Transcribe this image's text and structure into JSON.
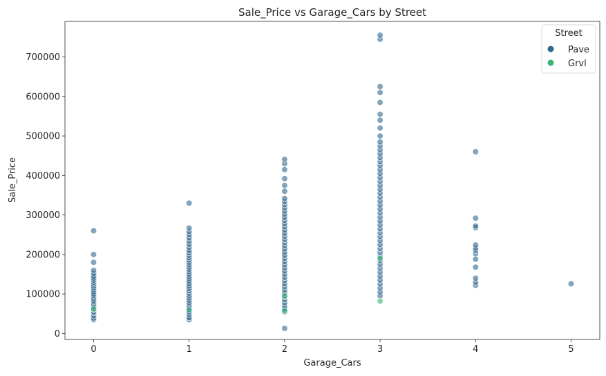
{
  "chart_data": {
    "type": "scatter",
    "title": "Sale_Price vs Garage_Cars by Street",
    "xlabel": "Garage_Cars",
    "ylabel": "Sale_Price",
    "xlim": [
      -0.3,
      5.3
    ],
    "ylim": [
      -15000,
      790000
    ],
    "xticks": [
      0,
      1,
      2,
      3,
      4,
      5
    ],
    "yticks": [
      0,
      100000,
      200000,
      300000,
      400000,
      500000,
      600000,
      700000
    ],
    "grid": false,
    "legend": {
      "title": "Street",
      "placement": "top-right",
      "entries": [
        {
          "name": "Pave",
          "color": "#31688e"
        },
        {
          "name": "Grvl",
          "color": "#35b779"
        }
      ]
    },
    "series": [
      {
        "name": "Pave",
        "color": "#31688e",
        "points": [
          [
            0,
            35000
          ],
          [
            0,
            39000
          ],
          [
            0,
            45000
          ],
          [
            0,
            52000
          ],
          [
            0,
            55000
          ],
          [
            0,
            60000
          ],
          [
            0,
            64000
          ],
          [
            0,
            68000
          ],
          [
            0,
            72000
          ],
          [
            0,
            76000
          ],
          [
            0,
            80000
          ],
          [
            0,
            84000
          ],
          [
            0,
            88000
          ],
          [
            0,
            92000
          ],
          [
            0,
            96000
          ],
          [
            0,
            100000
          ],
          [
            0,
            105000
          ],
          [
            0,
            110000
          ],
          [
            0,
            115000
          ],
          [
            0,
            120000
          ],
          [
            0,
            125000
          ],
          [
            0,
            130000
          ],
          [
            0,
            135000
          ],
          [
            0,
            140000
          ],
          [
            0,
            145000
          ],
          [
            0,
            152000
          ],
          [
            0,
            160000
          ],
          [
            0,
            180000
          ],
          [
            0,
            200000
          ],
          [
            0,
            260000
          ],
          [
            1,
            35000
          ],
          [
            1,
            40000
          ],
          [
            1,
            48000
          ],
          [
            1,
            55000
          ],
          [
            1,
            60000
          ],
          [
            1,
            66000
          ],
          [
            1,
            72000
          ],
          [
            1,
            78000
          ],
          [
            1,
            84000
          ],
          [
            1,
            90000
          ],
          [
            1,
            96000
          ],
          [
            1,
            102000
          ],
          [
            1,
            108000
          ],
          [
            1,
            114000
          ],
          [
            1,
            120000
          ],
          [
            1,
            126000
          ],
          [
            1,
            132000
          ],
          [
            1,
            138000
          ],
          [
            1,
            144000
          ],
          [
            1,
            150000
          ],
          [
            1,
            156000
          ],
          [
            1,
            162000
          ],
          [
            1,
            168000
          ],
          [
            1,
            174000
          ],
          [
            1,
            180000
          ],
          [
            1,
            186000
          ],
          [
            1,
            192000
          ],
          [
            1,
            198000
          ],
          [
            1,
            204000
          ],
          [
            1,
            210000
          ],
          [
            1,
            218000
          ],
          [
            1,
            226000
          ],
          [
            1,
            234000
          ],
          [
            1,
            242000
          ],
          [
            1,
            250000
          ],
          [
            1,
            258000
          ],
          [
            1,
            267000
          ],
          [
            1,
            330000
          ],
          [
            2,
            13000
          ],
          [
            2,
            55000
          ],
          [
            2,
            62000
          ],
          [
            2,
            70000
          ],
          [
            2,
            78000
          ],
          [
            2,
            86000
          ],
          [
            2,
            94000
          ],
          [
            2,
            102000
          ],
          [
            2,
            110000
          ],
          [
            2,
            118000
          ],
          [
            2,
            126000
          ],
          [
            2,
            134000
          ],
          [
            2,
            142000
          ],
          [
            2,
            150000
          ],
          [
            2,
            158000
          ],
          [
            2,
            166000
          ],
          [
            2,
            174000
          ],
          [
            2,
            182000
          ],
          [
            2,
            190000
          ],
          [
            2,
            198000
          ],
          [
            2,
            206000
          ],
          [
            2,
            214000
          ],
          [
            2,
            222000
          ],
          [
            2,
            230000
          ],
          [
            2,
            238000
          ],
          [
            2,
            246000
          ],
          [
            2,
            254000
          ],
          [
            2,
            262000
          ],
          [
            2,
            270000
          ],
          [
            2,
            278000
          ],
          [
            2,
            286000
          ],
          [
            2,
            294000
          ],
          [
            2,
            302000
          ],
          [
            2,
            310000
          ],
          [
            2,
            318000
          ],
          [
            2,
            326000
          ],
          [
            2,
            334000
          ],
          [
            2,
            342000
          ],
          [
            2,
            360000
          ],
          [
            2,
            375000
          ],
          [
            2,
            392000
          ],
          [
            2,
            415000
          ],
          [
            2,
            430000
          ],
          [
            2,
            441000
          ],
          [
            3,
            95000
          ],
          [
            3,
            105000
          ],
          [
            3,
            115000
          ],
          [
            3,
            125000
          ],
          [
            3,
            135000
          ],
          [
            3,
            145000
          ],
          [
            3,
            155000
          ],
          [
            3,
            165000
          ],
          [
            3,
            175000
          ],
          [
            3,
            185000
          ],
          [
            3,
            195000
          ],
          [
            3,
            205000
          ],
          [
            3,
            215000
          ],
          [
            3,
            225000
          ],
          [
            3,
            235000
          ],
          [
            3,
            245000
          ],
          [
            3,
            255000
          ],
          [
            3,
            265000
          ],
          [
            3,
            275000
          ],
          [
            3,
            285000
          ],
          [
            3,
            295000
          ],
          [
            3,
            305000
          ],
          [
            3,
            315000
          ],
          [
            3,
            325000
          ],
          [
            3,
            335000
          ],
          [
            3,
            345000
          ],
          [
            3,
            355000
          ],
          [
            3,
            365000
          ],
          [
            3,
            375000
          ],
          [
            3,
            385000
          ],
          [
            3,
            395000
          ],
          [
            3,
            405000
          ],
          [
            3,
            415000
          ],
          [
            3,
            425000
          ],
          [
            3,
            435000
          ],
          [
            3,
            445000
          ],
          [
            3,
            455000
          ],
          [
            3,
            465000
          ],
          [
            3,
            475000
          ],
          [
            3,
            485000
          ],
          [
            3,
            500000
          ],
          [
            3,
            520000
          ],
          [
            3,
            540000
          ],
          [
            3,
            555000
          ],
          [
            3,
            585000
          ],
          [
            3,
            610000
          ],
          [
            3,
            625000
          ],
          [
            3,
            745000
          ],
          [
            3,
            755000
          ],
          [
            4,
            122000
          ],
          [
            4,
            130000
          ],
          [
            4,
            140000
          ],
          [
            4,
            168000
          ],
          [
            4,
            188000
          ],
          [
            4,
            202000
          ],
          [
            4,
            210000
          ],
          [
            4,
            216000
          ],
          [
            4,
            224000
          ],
          [
            4,
            268000
          ],
          [
            4,
            272000
          ],
          [
            4,
            292000
          ],
          [
            4,
            460000
          ],
          [
            5,
            126000
          ]
        ]
      },
      {
        "name": "Grvl",
        "color": "#35b779",
        "points": [
          [
            0,
            62000
          ],
          [
            1,
            60000
          ],
          [
            2,
            58000
          ],
          [
            2,
            95000
          ],
          [
            3,
            82000
          ],
          [
            3,
            190000
          ]
        ]
      }
    ]
  }
}
